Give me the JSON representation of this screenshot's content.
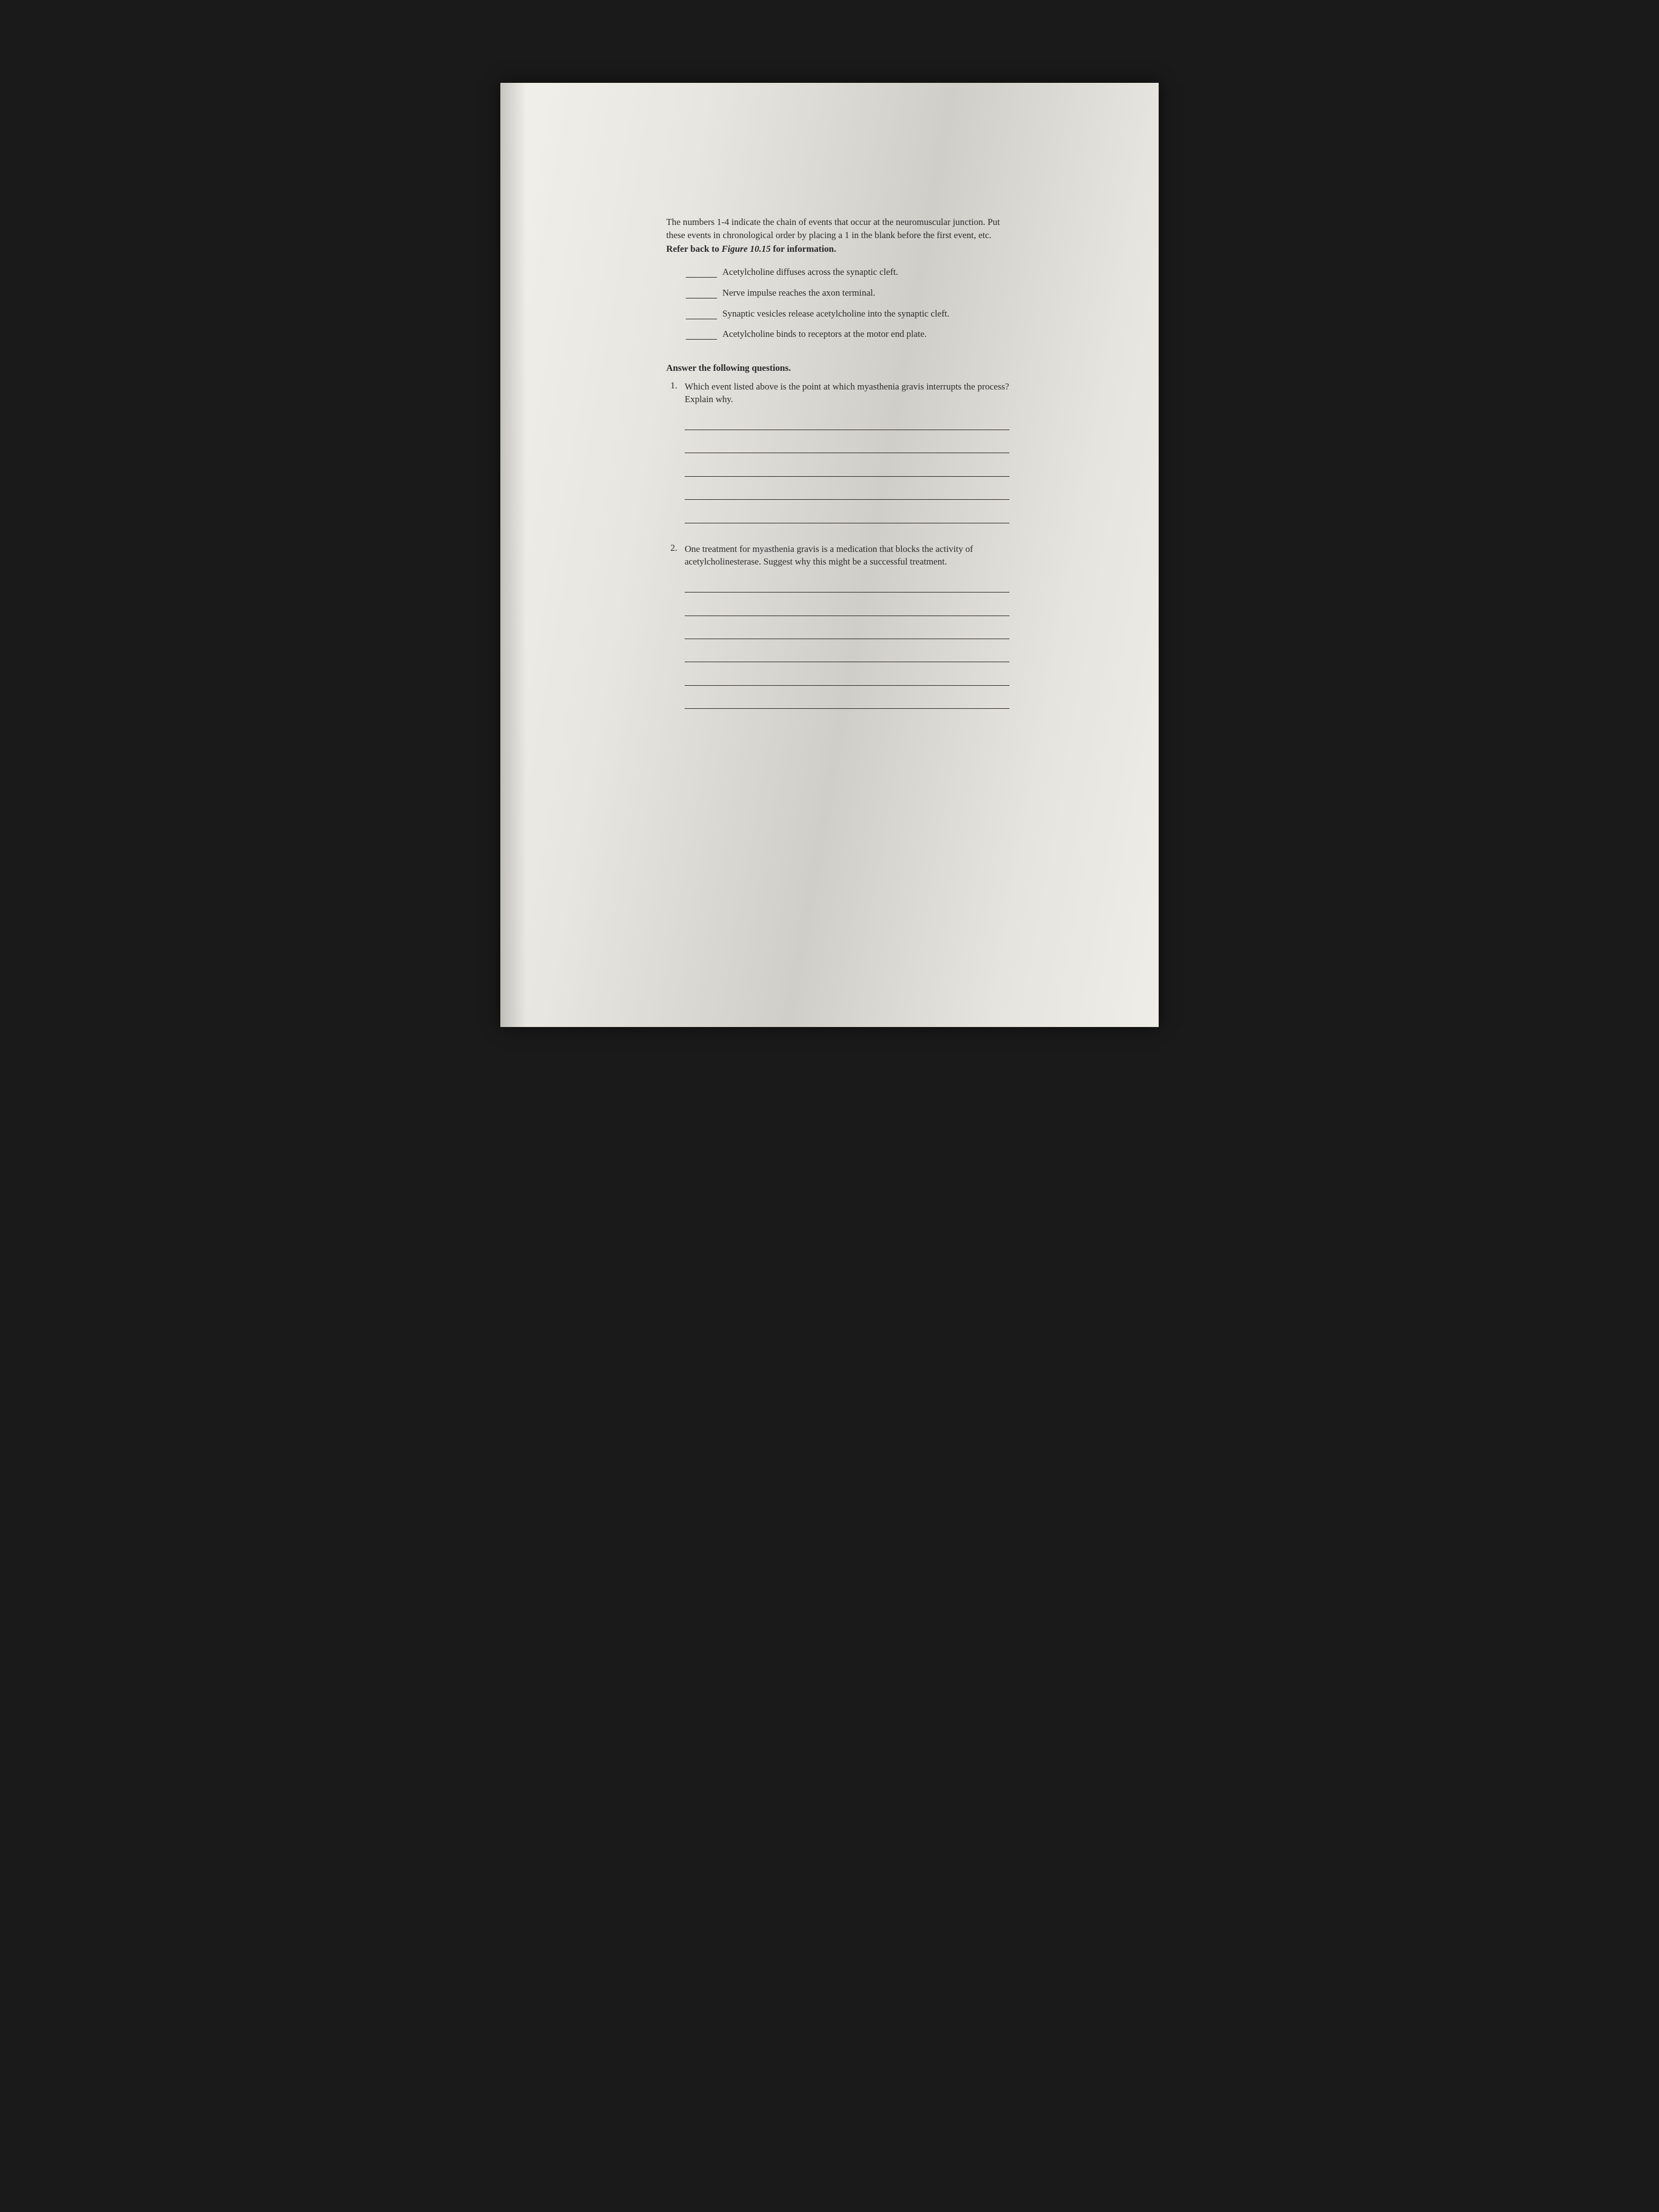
{
  "page": {
    "background_gradient": [
      "#f2f0ea",
      "#e8e6e0",
      "#d0cec8",
      "#e6e4de",
      "#efede7"
    ],
    "text_color": "#2a2a2a",
    "rule_color": "#222222",
    "base_fontsize_pt": 12,
    "font_family": "serif"
  },
  "instructions": {
    "lead": "The numbers 1-4 indicate the chain of events that occur at the neuromuscular junction. Put these events in chronological order by placing a 1 in the blank before the first event, etc. ",
    "bold1": "Refer back to ",
    "italic": "Figure 10.15",
    "bold2": " for information."
  },
  "order_items": [
    "Acetylcholine diffuses across the synaptic cleft.",
    "Nerve impulse reaches the axon terminal.",
    "Synaptic vesicles release acetylcholine into the synaptic cleft.",
    "Acetylcholine binds to receptors at the motor end plate."
  ],
  "section_heading": "Answer the following questions.",
  "questions": [
    {
      "num": "1.",
      "text": "Which event listed above is the point at which myasthenia gravis interrupts the process? Explain why.",
      "answer_lines": 5
    },
    {
      "num": "2.",
      "text": "One treatment for myasthenia gravis is a medication that blocks the activity of acetylcholinesterase. Suggest why this might be a successful treatment.",
      "answer_lines": 6
    }
  ]
}
